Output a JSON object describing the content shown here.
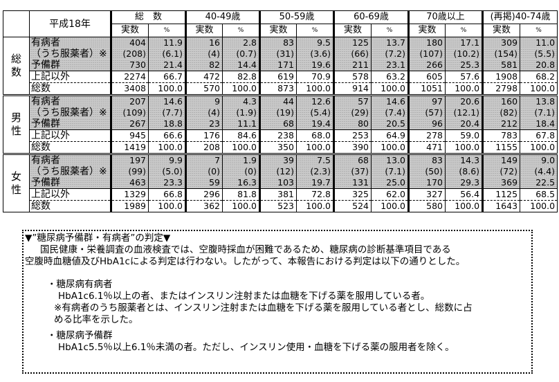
{
  "table": {
    "year_label": "平成18年",
    "age_groups": [
      "総　数",
      "40-49歳",
      "50-59歳",
      "60-69歳",
      "70歳以上",
      "(再掲)40-74歳"
    ],
    "sub_headers": {
      "count": "実数",
      "pct": "%"
    },
    "row_labels": [
      "有病者",
      "（うち服薬者）※",
      "予備群",
      "上記以外",
      "総数"
    ],
    "groups": [
      {
        "name": "総数",
        "rows": [
          [
            "404",
            "11.9",
            "16",
            "2.8",
            "83",
            "9.5",
            "125",
            "13.7",
            "180",
            "17.1",
            "309",
            "11.0"
          ],
          [
            "(208)",
            "(6.1)",
            "(4)",
            "(0.7)",
            "(31)",
            "(3.6)",
            "(66)",
            "(7.2)",
            "(107)",
            "(10.2)",
            "(154)",
            "(5.5)"
          ],
          [
            "730",
            "21.4",
            "82",
            "14.4",
            "171",
            "19.6",
            "211",
            "23.1",
            "266",
            "25.3",
            "581",
            "20.8"
          ],
          [
            "2274",
            "66.7",
            "472",
            "82.8",
            "619",
            "70.9",
            "578",
            "63.2",
            "605",
            "57.6",
            "1908",
            "68.2"
          ],
          [
            "3408",
            "100.0",
            "570",
            "100.0",
            "873",
            "100.0",
            "914",
            "100.0",
            "1051",
            "100.0",
            "2798",
            "100.0"
          ]
        ]
      },
      {
        "name": "男性",
        "rows": [
          [
            "207",
            "14.6",
            "9",
            "4.3",
            "44",
            "12.6",
            "57",
            "14.6",
            "97",
            "20.6",
            "160",
            "13.8"
          ],
          [
            "(109)",
            "(7.7)",
            "(4)",
            "(1.9)",
            "(19)",
            "(5.4)",
            "(29)",
            "(7.4)",
            "(57)",
            "(12.1)",
            "(82)",
            "(7.1)"
          ],
          [
            "267",
            "18.8",
            "23",
            "11.1",
            "68",
            "19.4",
            "80",
            "20.5",
            "96",
            "20.4",
            "212",
            "18.4"
          ],
          [
            "945",
            "66.6",
            "176",
            "84.6",
            "238",
            "68.0",
            "253",
            "64.9",
            "278",
            "59.0",
            "783",
            "67.8"
          ],
          [
            "1419",
            "100.0",
            "208",
            "100.0",
            "350",
            "100.0",
            "390",
            "100.0",
            "471",
            "100.0",
            "1155",
            "100.0"
          ]
        ]
      },
      {
        "name": "女性",
        "rows": [
          [
            "197",
            "9.9",
            "7",
            "1.9",
            "39",
            "7.5",
            "68",
            "13.0",
            "83",
            "14.3",
            "149",
            "9.0"
          ],
          [
            "(99)",
            "(5.0)",
            "(0)",
            "(0)",
            "(12)",
            "(2.3)",
            "(37)",
            "(7.1)",
            "(50)",
            "(8.6)",
            "(72)",
            "(4.4)"
          ],
          [
            "463",
            "23.3",
            "59",
            "16.3",
            "103",
            "19.7",
            "131",
            "25.0",
            "170",
            "29.3",
            "369",
            "22.5"
          ],
          [
            "1329",
            "66.8",
            "296",
            "81.8",
            "381",
            "72.8",
            "325",
            "62.0",
            "327",
            "56.4",
            "1125",
            "68.5"
          ],
          [
            "1989",
            "100.0",
            "362",
            "100.0",
            "523",
            "100.0",
            "524",
            "100.0",
            "580",
            "100.0",
            "1643",
            "100.0"
          ]
        ]
      }
    ]
  },
  "note": {
    "title": "▼”糖尿病予備群・有病者”の判定▼",
    "intro1": "国民健康・栄養調査の血液検査では、空腹時採血が困難であるため、糖尿病の診断基準項目である",
    "intro2": "空腹時血糖値及びHbA1cによる判定は行わない。したがって、本報告における判定は以下の通りとした。",
    "def1_title": "・糖尿病有病者",
    "def1_text": "HbA1c6.1％以上の者、またはインスリン注射または血糖を下げる薬を服用している者。",
    "def1_note1": "※有病者のうち服薬者とは、インスリン注射または血糖を下げる薬を服用している者とし、総数に占",
    "def1_note2": "める比率を示した。",
    "def2_title": "・糖尿病予備群",
    "def2_text": "HbA1c5.5％以上6.1％未満の者。ただし、インスリン使用・血糖を下げる薬の服用者を除く。"
  }
}
